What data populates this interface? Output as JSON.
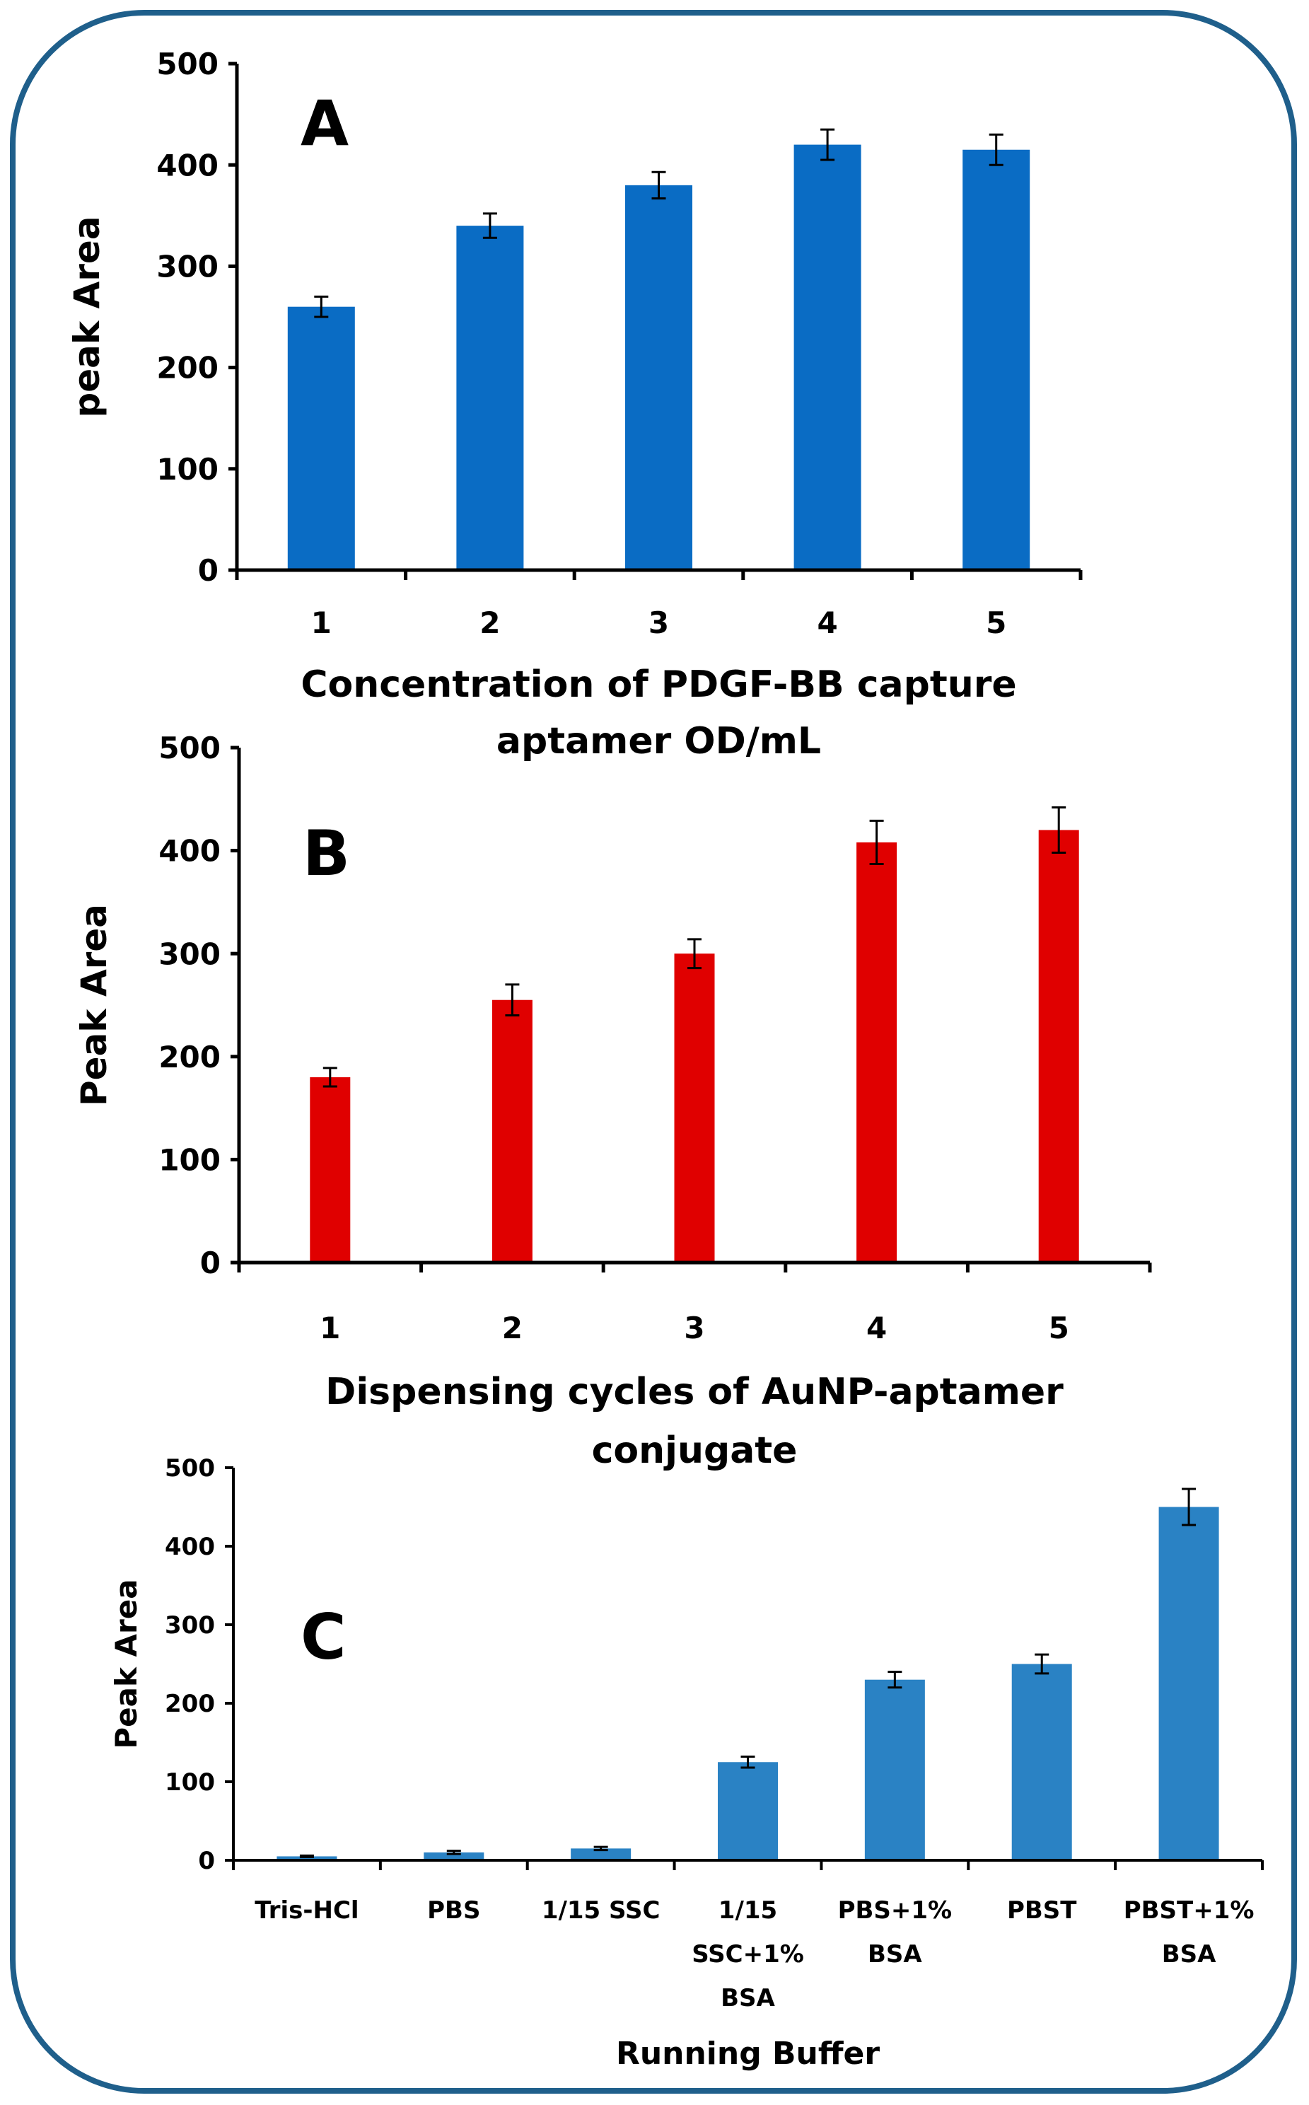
{
  "chart_data": [
    {
      "type": "bar",
      "panel_letter": "A",
      "categories": [
        "1",
        "2",
        "3",
        "4",
        "5"
      ],
      "values": [
        260,
        340,
        380,
        420,
        415
      ],
      "errors": [
        10,
        12,
        13,
        15,
        15
      ],
      "ylabel": "peak Area",
      "xlabel_lines": [
        "Concentration of PDGF-BB capture",
        "aptamer  OD/mL"
      ],
      "ylim": [
        0,
        500
      ],
      "yticks": [
        "0",
        "100",
        "200",
        "300",
        "400",
        "500"
      ],
      "color": "#0a6cc4"
    },
    {
      "type": "bar",
      "panel_letter": "B",
      "categories": [
        "1",
        "2",
        "3",
        "4",
        "5"
      ],
      "values": [
        180,
        255,
        300,
        408,
        420
      ],
      "errors": [
        9,
        15,
        14,
        21,
        22
      ],
      "ylabel": "Peak Area",
      "xlabel_lines": [
        "Dispensing cycles of AuNP-aptamer",
        "conjugate"
      ],
      "ylim": [
        0,
        500
      ],
      "yticks": [
        "0",
        "100",
        "200",
        "300",
        "400",
        "500"
      ],
      "color": "#e00000"
    },
    {
      "type": "bar",
      "panel_letter": "C",
      "categories": [
        [
          "Tris-HCl"
        ],
        [
          "PBS"
        ],
        [
          "1/15 SSC"
        ],
        [
          "1/15",
          "SSC+1%",
          "BSA"
        ],
        [
          "PBS+1%",
          "BSA"
        ],
        [
          "PBST"
        ],
        [
          "PBST+1%",
          "BSA"
        ]
      ],
      "values": [
        5,
        10,
        15,
        125,
        230,
        250,
        450
      ],
      "errors": [
        1,
        2,
        2,
        7,
        10,
        12,
        23
      ],
      "ylabel": "Peak Area",
      "xlabel_lines": [
        "Running Buffer"
      ],
      "ylim": [
        0,
        500
      ],
      "yticks": [
        "0",
        "100",
        "200",
        "300",
        "400",
        "500"
      ],
      "color": "#2a82c4"
    }
  ]
}
